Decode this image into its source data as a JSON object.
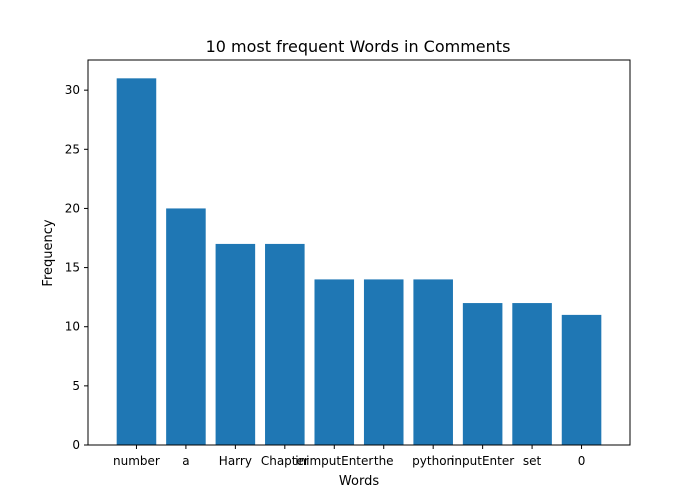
{
  "chart_data": {
    "type": "bar",
    "title": "10 most frequent Words in Comments",
    "xlabel": "Words",
    "ylabel": "Frequency",
    "categories": [
      "number",
      "a",
      "Harry",
      "Chapter",
      "inimputEnter",
      "the",
      "python",
      "inputEnter",
      "set",
      "0"
    ],
    "values": [
      31,
      20,
      17,
      17,
      14,
      14,
      14,
      12,
      12,
      11
    ],
    "ylim": [
      0,
      32.55
    ],
    "yticks": [
      0,
      5,
      10,
      15,
      20,
      25,
      30
    ],
    "grid": false,
    "legend": "none",
    "bar_color": "#1f77b4"
  }
}
